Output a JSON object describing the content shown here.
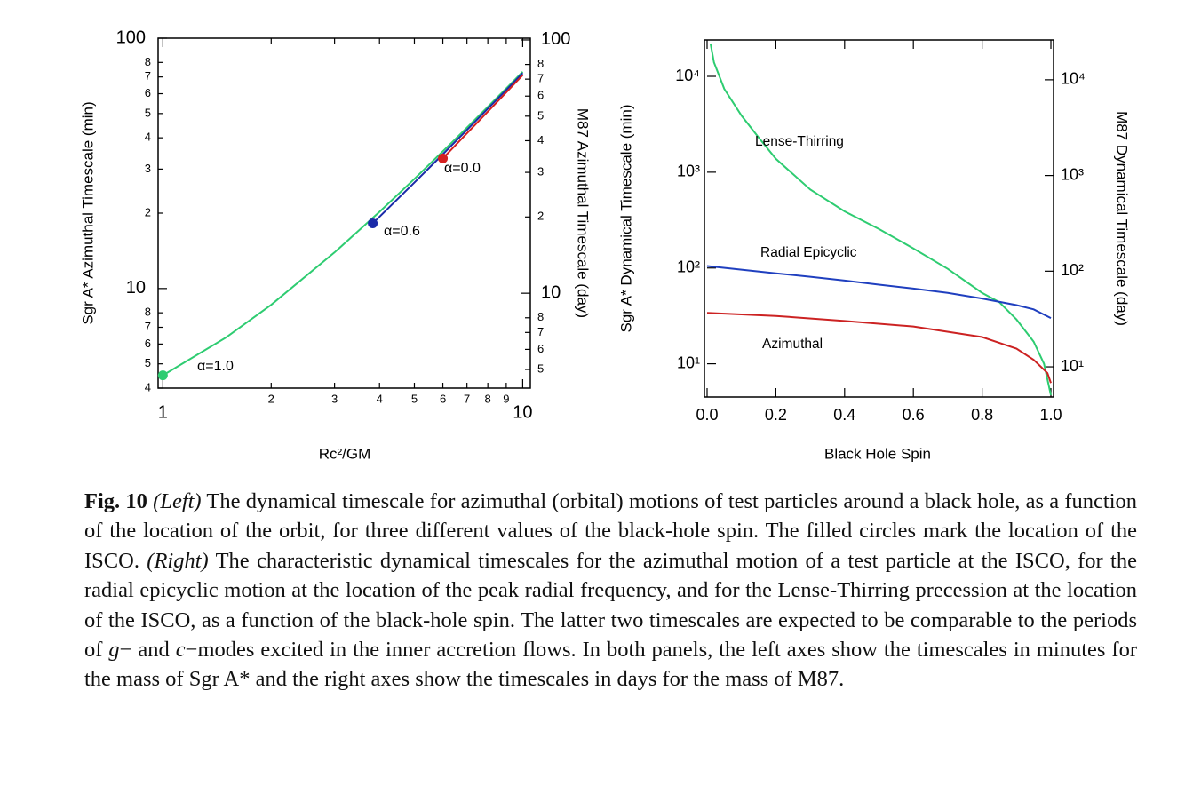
{
  "chart_data": [
    {
      "type": "line",
      "xscale": "log",
      "yscale": "log",
      "markers": true,
      "xlim": [
        0.97,
        10.5
      ],
      "ylim": [
        4,
        100
      ],
      "y2lim": [
        4.22,
        101.6
      ],
      "xticks": [
        1,
        2,
        3,
        4,
        5,
        6,
        7,
        8,
        9,
        10
      ],
      "yticks": [
        4,
        5,
        6,
        7,
        8,
        10,
        {
          "value": 20,
          "label": "2"
        },
        {
          "value": 30,
          "label": "3"
        },
        {
          "value": 40,
          "label": "4"
        },
        {
          "value": 50,
          "label": "5"
        },
        {
          "value": 60,
          "label": "6"
        },
        {
          "value": 70,
          "label": "7"
        },
        {
          "value": 80,
          "label": "8"
        },
        100
      ],
      "y2ticks": [
        5,
        6,
        7,
        8,
        10,
        {
          "value": 20,
          "label": "2"
        },
        {
          "value": 30,
          "label": "3"
        },
        {
          "value": 40,
          "label": "4"
        },
        {
          "value": 50,
          "label": "5"
        },
        {
          "value": 60,
          "label": "6"
        },
        {
          "value": 70,
          "label": "7"
        },
        {
          "value": 80,
          "label": "8"
        },
        100
      ],
      "xlabel": "Rc²/GM",
      "ylabel": "Sgr A* Azimuthal Timescale (min)",
      "y2label": "M87 Azimuthal Timescale (day)",
      "series": [
        {
          "name": "α=1.0",
          "color": "#2ecc71",
          "x": [
            1,
            1.5,
            2,
            3,
            4,
            5,
            6,
            7,
            8,
            9,
            10
          ],
          "values": [
            4.5,
            6.38,
            8.61,
            13.94,
            20.25,
            27.41,
            35.32,
            43.92,
            53.16,
            63.0,
            73.4
          ]
        },
        {
          "name": "α=0.6",
          "color": "#1a2aa8",
          "x": [
            3.83,
            4,
            5,
            6,
            7,
            8,
            9,
            10
          ],
          "values": [
            18.2,
            19.35,
            26.5,
            34.4,
            43.0,
            52.3,
            62.1,
            72.5
          ]
        },
        {
          "name": "α=0.0",
          "color": "#d42020",
          "x": [
            6,
            7,
            8,
            9,
            10
          ],
          "values": [
            33.1,
            41.7,
            50.9,
            60.75,
            71.2
          ]
        }
      ]
    },
    {
      "type": "line",
      "xscale": "linear",
      "yscale": "log",
      "markers": false,
      "xlim": [
        0,
        1
      ],
      "ylim": [
        4.5,
        24000
      ],
      "y2lim": [
        4.84,
        26100
      ],
      "xticks": [
        {
          "value": 0,
          "label": "0.0"
        },
        0.2,
        0.4,
        0.6,
        0.8,
        {
          "value": 1,
          "label": "1.0"
        }
      ],
      "yticks": [
        {
          "value": 10,
          "label": "10¹"
        },
        {
          "value": 100,
          "label": "10²"
        },
        {
          "value": 1000,
          "label": "10³"
        },
        {
          "value": 10000,
          "label": "10⁴"
        }
      ],
      "y2ticks": [
        {
          "value": 10,
          "label": "10¹"
        },
        {
          "value": 100,
          "label": "10²"
        },
        {
          "value": 1000,
          "label": "10³"
        },
        {
          "value": 10000,
          "label": "10⁴"
        }
      ],
      "xlabel": "Black Hole Spin",
      "ylabel": "Sgr A* Dynamical Timescale (min)",
      "y2label": "M87 Dynamical Timescale (day)",
      "series": [
        {
          "name": "Lense-Thirring",
          "color": "#2ecc71",
          "x": [
            0.01,
            0.02,
            0.05,
            0.1,
            0.15,
            0.2,
            0.3,
            0.4,
            0.5,
            0.6,
            0.7,
            0.8,
            0.85,
            0.9,
            0.95,
            0.98,
            1.0
          ],
          "values": [
            22000,
            14000,
            7400,
            3900,
            2300,
            1380,
            660,
            390,
            255,
            160,
            98,
            55,
            44,
            29,
            17,
            10,
            4.7
          ]
        },
        {
          "name": "Radial Epicyclic",
          "color": "#1f3fbf",
          "x": [
            0,
            0.1,
            0.2,
            0.3,
            0.4,
            0.5,
            0.6,
            0.7,
            0.8,
            0.9,
            0.95,
            1.0
          ],
          "values": [
            105,
            96,
            88,
            81,
            74,
            67,
            61,
            55,
            48,
            41,
            37,
            30
          ]
        },
        {
          "name": "Azimuthal",
          "color": "#cc2222",
          "x": [
            0,
            0.2,
            0.4,
            0.6,
            0.8,
            0.9,
            0.95,
            0.99,
            1.0
          ],
          "values": [
            34,
            31.6,
            28,
            24.5,
            19,
            14.4,
            11,
            8,
            6.3
          ]
        }
      ]
    }
  ],
  "caption": {
    "runs": [
      {
        "text": "Fig. 10",
        "style": "bold"
      },
      {
        "text": " ",
        "style": "normal"
      },
      {
        "text": "(Left)",
        "style": "italic"
      },
      {
        "text": " The dynamical timescale for azimuthal (orbital) motions of test particles around a black hole, as a function of the location of the orbit, for three different values of the black-hole spin. The filled circles mark the location of the ISCO. ",
        "style": "normal"
      },
      {
        "text": "(Right)",
        "style": "italic"
      },
      {
        "text": " The characteristic dynamical timescales for the azimuthal motion of a test particle at the ISCO, for the radial epicyclic motion at the location of the peak radial frequency, and for the Lense-Thirring precession at the location of the ISCO, as a function of the black-hole spin. The latter two timescales are expected to be comparable to the periods of ",
        "style": "normal"
      },
      {
        "text": "g",
        "style": "italic"
      },
      {
        "text": "− and ",
        "style": "normal"
      },
      {
        "text": "c",
        "style": "italic"
      },
      {
        "text": "−modes excited in the inner accretion flows. In both panels, the left axes show the timescales in minutes for the mass of Sgr A* and the right axes show the timescales in days for the mass of M87.",
        "style": "normal"
      }
    ]
  }
}
